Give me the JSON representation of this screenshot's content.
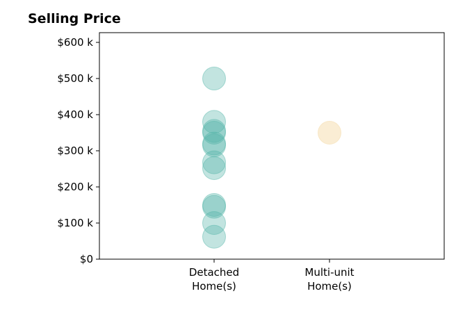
{
  "chart_data": {
    "type": "scatter",
    "title": "Selling Price",
    "xlabel": "",
    "ylabel": "",
    "categories": [
      "Detached\nHome(s)",
      "Multi-unit\nHome(s)"
    ],
    "ylim": [
      0,
      625000
    ],
    "yticks": [
      0,
      100000,
      200000,
      300000,
      400000,
      500000,
      600000
    ],
    "ytick_labels": [
      "$0",
      "$100 k",
      "$200 k",
      "$300 k",
      "$400 k",
      "$500 k",
      "$600 k"
    ],
    "grid": false,
    "series": [
      {
        "category": "Detached\nHome(s)",
        "color": "#4fb3a6",
        "values": [
          500000,
          380000,
          355000,
          350000,
          320000,
          315000,
          268000,
          252000,
          150000,
          145000,
          100000,
          62000
        ]
      },
      {
        "category": "Multi-unit\nHome(s)",
        "color": "#f5deb0",
        "values": [
          350000
        ]
      }
    ]
  }
}
